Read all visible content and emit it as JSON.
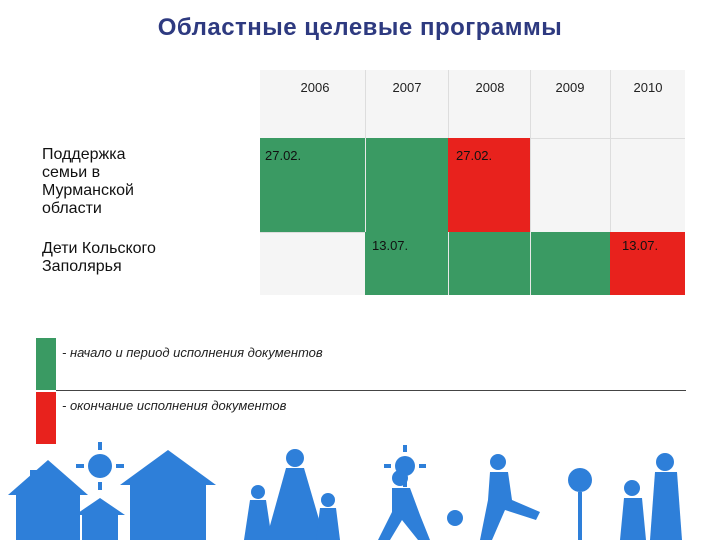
{
  "title": "Областные  целевые программы",
  "years": [
    "2006",
    "2007",
    "2008",
    "2009",
    "2010"
  ],
  "rows": [
    {
      "label": "Поддержка семьи в Мурманской области",
      "start_label": "27.02.",
      "end_label": "27.02."
    },
    {
      "label": "Дети Кольского Заполярья",
      "start_label": "13.07.",
      "end_label": "13.07."
    }
  ],
  "legend": {
    "green_text": "- начало и период исполнения  документов",
    "red_text": "- окончание исполнения документов"
  },
  "colors": {
    "title": "#2e3a80",
    "green": "#3a9a63",
    "red": "#e8221d",
    "silhouette": "#2e7fd9"
  }
}
